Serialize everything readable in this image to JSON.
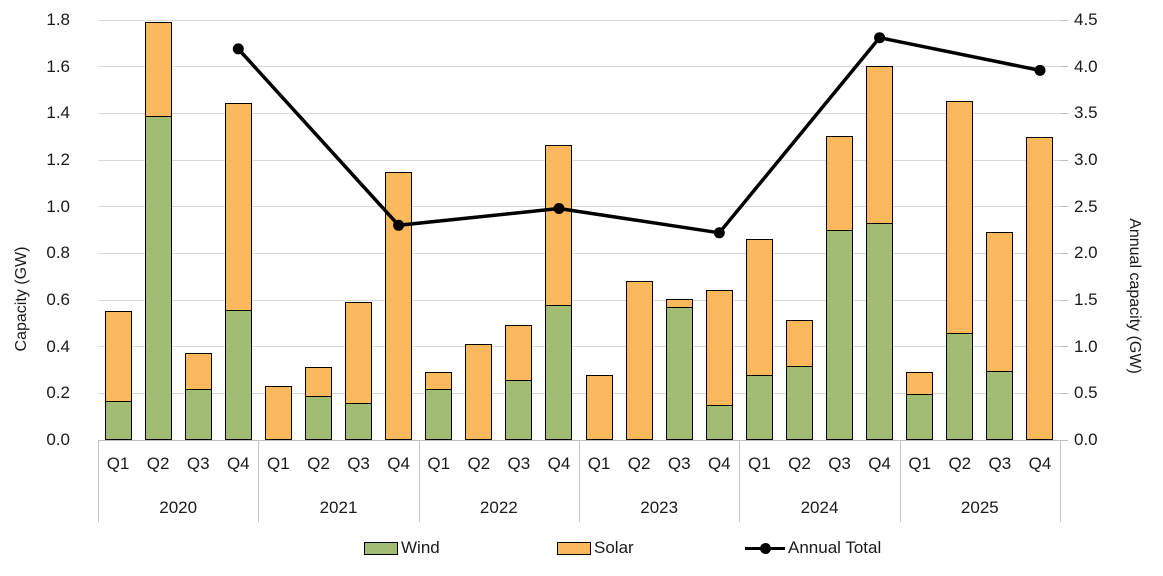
{
  "chart_data": {
    "type": "bar",
    "subtype": "stacked-quarterly-bars-with-annual-total-line",
    "title": "",
    "years": [
      "2020",
      "2021",
      "2022",
      "2023",
      "2024",
      "2025"
    ],
    "quarters": [
      "Q1",
      "Q2",
      "Q3",
      "Q4"
    ],
    "series": [
      {
        "name": "Wind",
        "type": "bar",
        "stacked": true,
        "color": "#a2bd73",
        "values_by_year": [
          [
            0.17,
            1.39,
            0.22,
            0.56
          ],
          [
            0.0,
            0.19,
            0.16,
            0.0
          ],
          [
            0.22,
            0.0,
            0.26,
            0.58
          ],
          [
            0.0,
            0.0,
            0.57,
            0.15
          ],
          [
            0.28,
            0.32,
            0.9,
            0.93
          ],
          [
            0.2,
            0.46,
            0.3,
            0.0
          ]
        ]
      },
      {
        "name": "Solar",
        "type": "bar",
        "stacked": true,
        "color": "#fbb85c",
        "values_by_year": [
          [
            0.39,
            0.41,
            0.16,
            0.89
          ],
          [
            0.23,
            0.13,
            0.44,
            1.15
          ],
          [
            0.08,
            0.41,
            0.24,
            0.69
          ],
          [
            0.28,
            0.68,
            0.04,
            0.5
          ],
          [
            0.59,
            0.2,
            0.41,
            0.68
          ],
          [
            0.1,
            1.0,
            0.6,
            1.3
          ]
        ]
      },
      {
        "name": "Annual Total",
        "type": "line",
        "axis": "right",
        "color": "#000000",
        "values": [
          4.19,
          2.3,
          2.48,
          2.22,
          4.31,
          3.96
        ]
      }
    ],
    "left_axis": {
      "title": "Capacity (GW)",
      "min": 0.0,
      "max": 1.8,
      "step": 0.2,
      "tick_labels": [
        "0.0",
        "0.2",
        "0.4",
        "0.6",
        "0.8",
        "1.0",
        "1.2",
        "1.4",
        "1.6",
        "1.8"
      ]
    },
    "right_axis": {
      "title": "Annual capacity (GW)",
      "min": 0.0,
      "max": 4.5,
      "step": 0.5,
      "tick_labels": [
        "0.0",
        "0.5",
        "1.0",
        "1.5",
        "2.0",
        "2.5",
        "3.0",
        "3.5",
        "4.0",
        "4.5"
      ]
    },
    "legend": {
      "position": "bottom",
      "entries": [
        {
          "label": "Wind",
          "marker": "box",
          "color": "#a2bd73"
        },
        {
          "label": "Solar",
          "marker": "box",
          "color": "#fbb85c"
        },
        {
          "label": "Annual Total",
          "marker": "line-dot",
          "color": "#000000"
        }
      ]
    },
    "grid": true,
    "colors": {
      "gridline": "#d9d9d9",
      "axis_line": "#bfbfbf",
      "bar_border": "#000000",
      "text": "#1a1a1a"
    }
  }
}
